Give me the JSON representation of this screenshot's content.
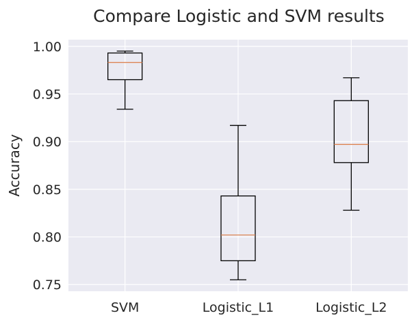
{
  "chart_data": {
    "type": "box",
    "title": "Compare Logistic and SVM results",
    "xlabel": "",
    "ylabel": "Accuracy",
    "ylim": [
      0.743,
      1.007
    ],
    "yticks": [
      0.75,
      0.8,
      0.85,
      0.9,
      0.95,
      1.0
    ],
    "ytick_labels": [
      "0.75",
      "0.80",
      "0.85",
      "0.90",
      "0.95",
      "1.00"
    ],
    "grid": true,
    "categories": [
      "SVM",
      "Logistic_L1",
      "Logistic_L2"
    ],
    "boxes": [
      {
        "name": "SVM",
        "whisker_low": 0.934,
        "q1": 0.965,
        "median": 0.983,
        "q3": 0.993,
        "whisker_high": 0.995
      },
      {
        "name": "Logistic_L1",
        "whisker_low": 0.755,
        "q1": 0.775,
        "median": 0.802,
        "q3": 0.843,
        "whisker_high": 0.917
      },
      {
        "name": "Logistic_L2",
        "whisker_low": 0.828,
        "q1": 0.878,
        "median": 0.897,
        "q3": 0.943,
        "whisker_high": 0.967
      }
    ],
    "colors": {
      "background": "#eaeaf2",
      "grid": "#ffffff",
      "box": "#000000",
      "median": "#dd8452"
    }
  }
}
